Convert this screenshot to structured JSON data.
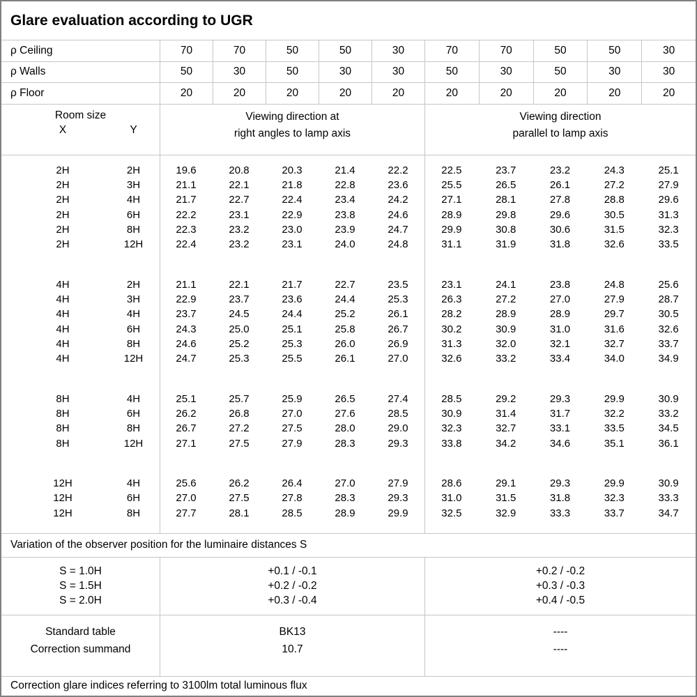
{
  "title": "Glare evaluation according to UGR",
  "reflectance_rows": [
    {
      "label": "ρ Ceiling",
      "values": [
        "70",
        "70",
        "50",
        "50",
        "30",
        "70",
        "70",
        "50",
        "50",
        "30"
      ]
    },
    {
      "label": "ρ Walls",
      "values": [
        "50",
        "30",
        "50",
        "30",
        "30",
        "50",
        "30",
        "50",
        "30",
        "30"
      ]
    },
    {
      "label": "ρ Floor",
      "values": [
        "20",
        "20",
        "20",
        "20",
        "20",
        "20",
        "20",
        "20",
        "20",
        "20"
      ]
    }
  ],
  "room_header": {
    "room_size_label": "Room size",
    "x_label": "X",
    "y_label": "Y",
    "right_angles_line1": "Viewing direction at",
    "right_angles_line2": "right angles to lamp axis",
    "parallel_line1": "Viewing direction",
    "parallel_line2": "parallel to lamp axis"
  },
  "ugr_table": {
    "blocks": [
      {
        "rows": [
          {
            "x": "2H",
            "y": "2H",
            "values": [
              "19.6",
              "20.8",
              "20.3",
              "21.4",
              "22.2",
              "22.5",
              "23.7",
              "23.2",
              "24.3",
              "25.1"
            ]
          },
          {
            "x": "2H",
            "y": "3H",
            "values": [
              "21.1",
              "22.1",
              "21.8",
              "22.8",
              "23.6",
              "25.5",
              "26.5",
              "26.1",
              "27.2",
              "27.9"
            ]
          },
          {
            "x": "2H",
            "y": "4H",
            "values": [
              "21.7",
              "22.7",
              "22.4",
              "23.4",
              "24.2",
              "27.1",
              "28.1",
              "27.8",
              "28.8",
              "29.6"
            ]
          },
          {
            "x": "2H",
            "y": "6H",
            "values": [
              "22.2",
              "23.1",
              "22.9",
              "23.8",
              "24.6",
              "28.9",
              "29.8",
              "29.6",
              "30.5",
              "31.3"
            ]
          },
          {
            "x": "2H",
            "y": "8H",
            "values": [
              "22.3",
              "23.2",
              "23.0",
              "23.9",
              "24.7",
              "29.9",
              "30.8",
              "30.6",
              "31.5",
              "32.3"
            ]
          },
          {
            "x": "2H",
            "y": "12H",
            "values": [
              "22.4",
              "23.2",
              "23.1",
              "24.0",
              "24.8",
              "31.1",
              "31.9",
              "31.8",
              "32.6",
              "33.5"
            ]
          }
        ]
      },
      {
        "rows": [
          {
            "x": "4H",
            "y": "2H",
            "values": [
              "21.1",
              "22.1",
              "21.7",
              "22.7",
              "23.5",
              "23.1",
              "24.1",
              "23.8",
              "24.8",
              "25.6"
            ]
          },
          {
            "x": "4H",
            "y": "3H",
            "values": [
              "22.9",
              "23.7",
              "23.6",
              "24.4",
              "25.3",
              "26.3",
              "27.2",
              "27.0",
              "27.9",
              "28.7"
            ]
          },
          {
            "x": "4H",
            "y": "4H",
            "values": [
              "23.7",
              "24.5",
              "24.4",
              "25.2",
              "26.1",
              "28.2",
              "28.9",
              "28.9",
              "29.7",
              "30.5"
            ]
          },
          {
            "x": "4H",
            "y": "6H",
            "values": [
              "24.3",
              "25.0",
              "25.1",
              "25.8",
              "26.7",
              "30.2",
              "30.9",
              "31.0",
              "31.6",
              "32.6"
            ]
          },
          {
            "x": "4H",
            "y": "8H",
            "values": [
              "24.6",
              "25.2",
              "25.3",
              "26.0",
              "26.9",
              "31.3",
              "32.0",
              "32.1",
              "32.7",
              "33.7"
            ]
          },
          {
            "x": "4H",
            "y": "12H",
            "values": [
              "24.7",
              "25.3",
              "25.5",
              "26.1",
              "27.0",
              "32.6",
              "33.2",
              "33.4",
              "34.0",
              "34.9"
            ]
          }
        ]
      },
      {
        "rows": [
          {
            "x": "8H",
            "y": "4H",
            "values": [
              "25.1",
              "25.7",
              "25.9",
              "26.5",
              "27.4",
              "28.5",
              "29.2",
              "29.3",
              "29.9",
              "30.9"
            ]
          },
          {
            "x": "8H",
            "y": "6H",
            "values": [
              "26.2",
              "26.8",
              "27.0",
              "27.6",
              "28.5",
              "30.9",
              "31.4",
              "31.7",
              "32.2",
              "33.2"
            ]
          },
          {
            "x": "8H",
            "y": "8H",
            "values": [
              "26.7",
              "27.2",
              "27.5",
              "28.0",
              "29.0",
              "32.3",
              "32.7",
              "33.1",
              "33.5",
              "34.5"
            ]
          },
          {
            "x": "8H",
            "y": "12H",
            "values": [
              "27.1",
              "27.5",
              "27.9",
              "28.3",
              "29.3",
              "33.8",
              "34.2",
              "34.6",
              "35.1",
              "36.1"
            ]
          }
        ]
      },
      {
        "rows": [
          {
            "x": "12H",
            "y": "4H",
            "values": [
              "25.6",
              "26.2",
              "26.4",
              "27.0",
              "27.9",
              "28.6",
              "29.1",
              "29.3",
              "29.9",
              "30.9"
            ]
          },
          {
            "x": "12H",
            "y": "6H",
            "values": [
              "27.0",
              "27.5",
              "27.8",
              "28.3",
              "29.3",
              "31.0",
              "31.5",
              "31.8",
              "32.3",
              "33.3"
            ]
          },
          {
            "x": "12H",
            "y": "8H",
            "values": [
              "27.7",
              "28.1",
              "28.5",
              "28.9",
              "29.9",
              "32.5",
              "32.9",
              "33.3",
              "33.7",
              "34.7"
            ]
          }
        ]
      }
    ]
  },
  "variation_note": "Variation of the observer position for the luminaire distances S",
  "variation_rows": [
    {
      "s": "S = 1.0H",
      "right_angles": "+0.1 / -0.1",
      "parallel": "+0.2 / -0.2"
    },
    {
      "s": "S = 1.5H",
      "right_angles": "+0.2 / -0.2",
      "parallel": "+0.3 / -0.3"
    },
    {
      "s": "S = 2.0H",
      "right_angles": "+0.3 / -0.4",
      "parallel": "+0.4 / -0.5"
    }
  ],
  "summary_rows": [
    {
      "label": "Standard table",
      "right_angles": "BK13",
      "parallel": "----"
    },
    {
      "label": "Correction summand",
      "right_angles": "10.7",
      "parallel": "----"
    }
  ],
  "footer_note": "Correction glare indices referring to 3100lm total luminous flux"
}
